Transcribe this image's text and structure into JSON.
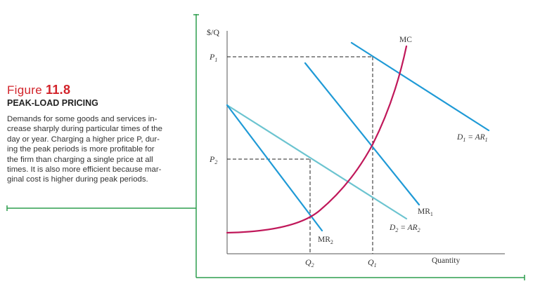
{
  "figure": {
    "label_prefix": "Figure",
    "label_number": "11.8",
    "title": "PEAK-LOAD PRICING",
    "description_lines": [
      "Demands for some goods and services in-",
      "crease sharply during particular times of the",
      "day or year. Charging a higher price P, dur-",
      "ing the peak periods is more profitable for",
      "the firm than charging a single price at all",
      "times. It is also more efficient because mar-",
      "ginal cost is higher during peak periods."
    ]
  },
  "chart_data": {
    "type": "line",
    "axes": {
      "y_label": "$/Q",
      "x_label": "Quantity",
      "y_ticks": [
        {
          "label": "P",
          "sub": "1"
        },
        {
          "label": "P",
          "sub": "2"
        }
      ],
      "x_ticks": [
        {
          "label": "Q",
          "sub": "2"
        },
        {
          "label": "Q",
          "sub": "1"
        }
      ]
    },
    "curves": [
      {
        "id": "mc",
        "label": "MC",
        "sub": "",
        "suffix": "",
        "color": "#c0185a"
      },
      {
        "id": "d1",
        "label": "D",
        "sub": "1",
        "suffix": " = AR",
        "suffix_sub": "1",
        "color": "#1f9ad6"
      },
      {
        "id": "mr1",
        "label": "MR",
        "sub": "1",
        "suffix": "",
        "color": "#1f9ad6"
      },
      {
        "id": "d2",
        "label": "D",
        "sub": "2",
        "suffix": " = AR",
        "suffix_sub": "2",
        "color": "#6cc4d0"
      },
      {
        "id": "mr2",
        "label": "MR",
        "sub": "2",
        "suffix": "",
        "color": "#1f9ad6"
      }
    ],
    "frame_color": "#2e9d4e"
  }
}
